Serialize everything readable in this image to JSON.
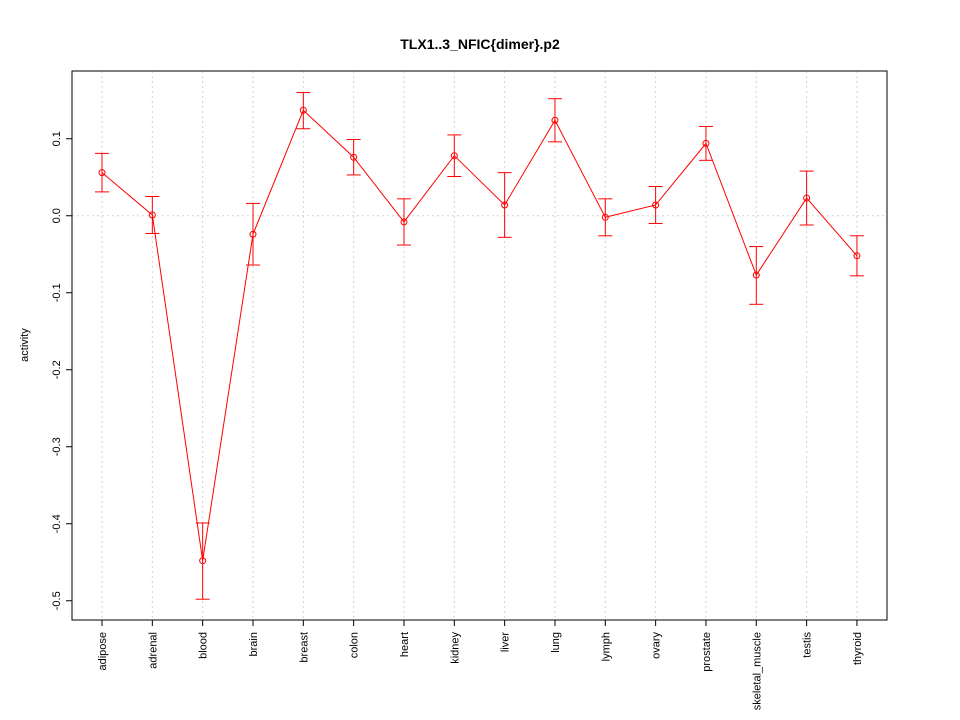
{
  "chart_data": {
    "type": "line",
    "title": "TLX1..3_NFIC{dimer}.p2",
    "xlabel": "",
    "ylabel": "activity",
    "categories": [
      "adipose",
      "adrenal",
      "blood",
      "brain",
      "breast",
      "colon",
      "heart",
      "kidney",
      "liver",
      "lung",
      "lymph",
      "ovary",
      "prostate",
      "skeletal_muscle",
      "testis",
      "thyroid"
    ],
    "series": [
      {
        "values": [
          0.056,
          0.001,
          -0.448,
          -0.024,
          0.137,
          0.076,
          -0.008,
          0.078,
          0.014,
          0.124,
          -0.002,
          0.014,
          0.094,
          -0.077,
          0.023,
          -0.052
        ],
        "err_low": [
          0.031,
          -0.023,
          -0.498,
          -0.064,
          0.113,
          0.053,
          -0.038,
          0.051,
          -0.028,
          0.096,
          -0.026,
          -0.01,
          0.072,
          -0.115,
          -0.012,
          -0.078
        ],
        "err_high": [
          0.081,
          0.025,
          -0.399,
          0.016,
          0.16,
          0.099,
          0.022,
          0.105,
          0.056,
          0.152,
          0.022,
          0.038,
          0.116,
          -0.04,
          0.058,
          -0.026
        ]
      }
    ],
    "yticks": [
      "-0.5",
      "-0.4",
      "-0.3",
      "-0.2",
      "-0.1",
      "0.0",
      "0.1"
    ],
    "ylim": [
      -0.525,
      0.188
    ],
    "grid": true,
    "color": "#ff0000"
  }
}
